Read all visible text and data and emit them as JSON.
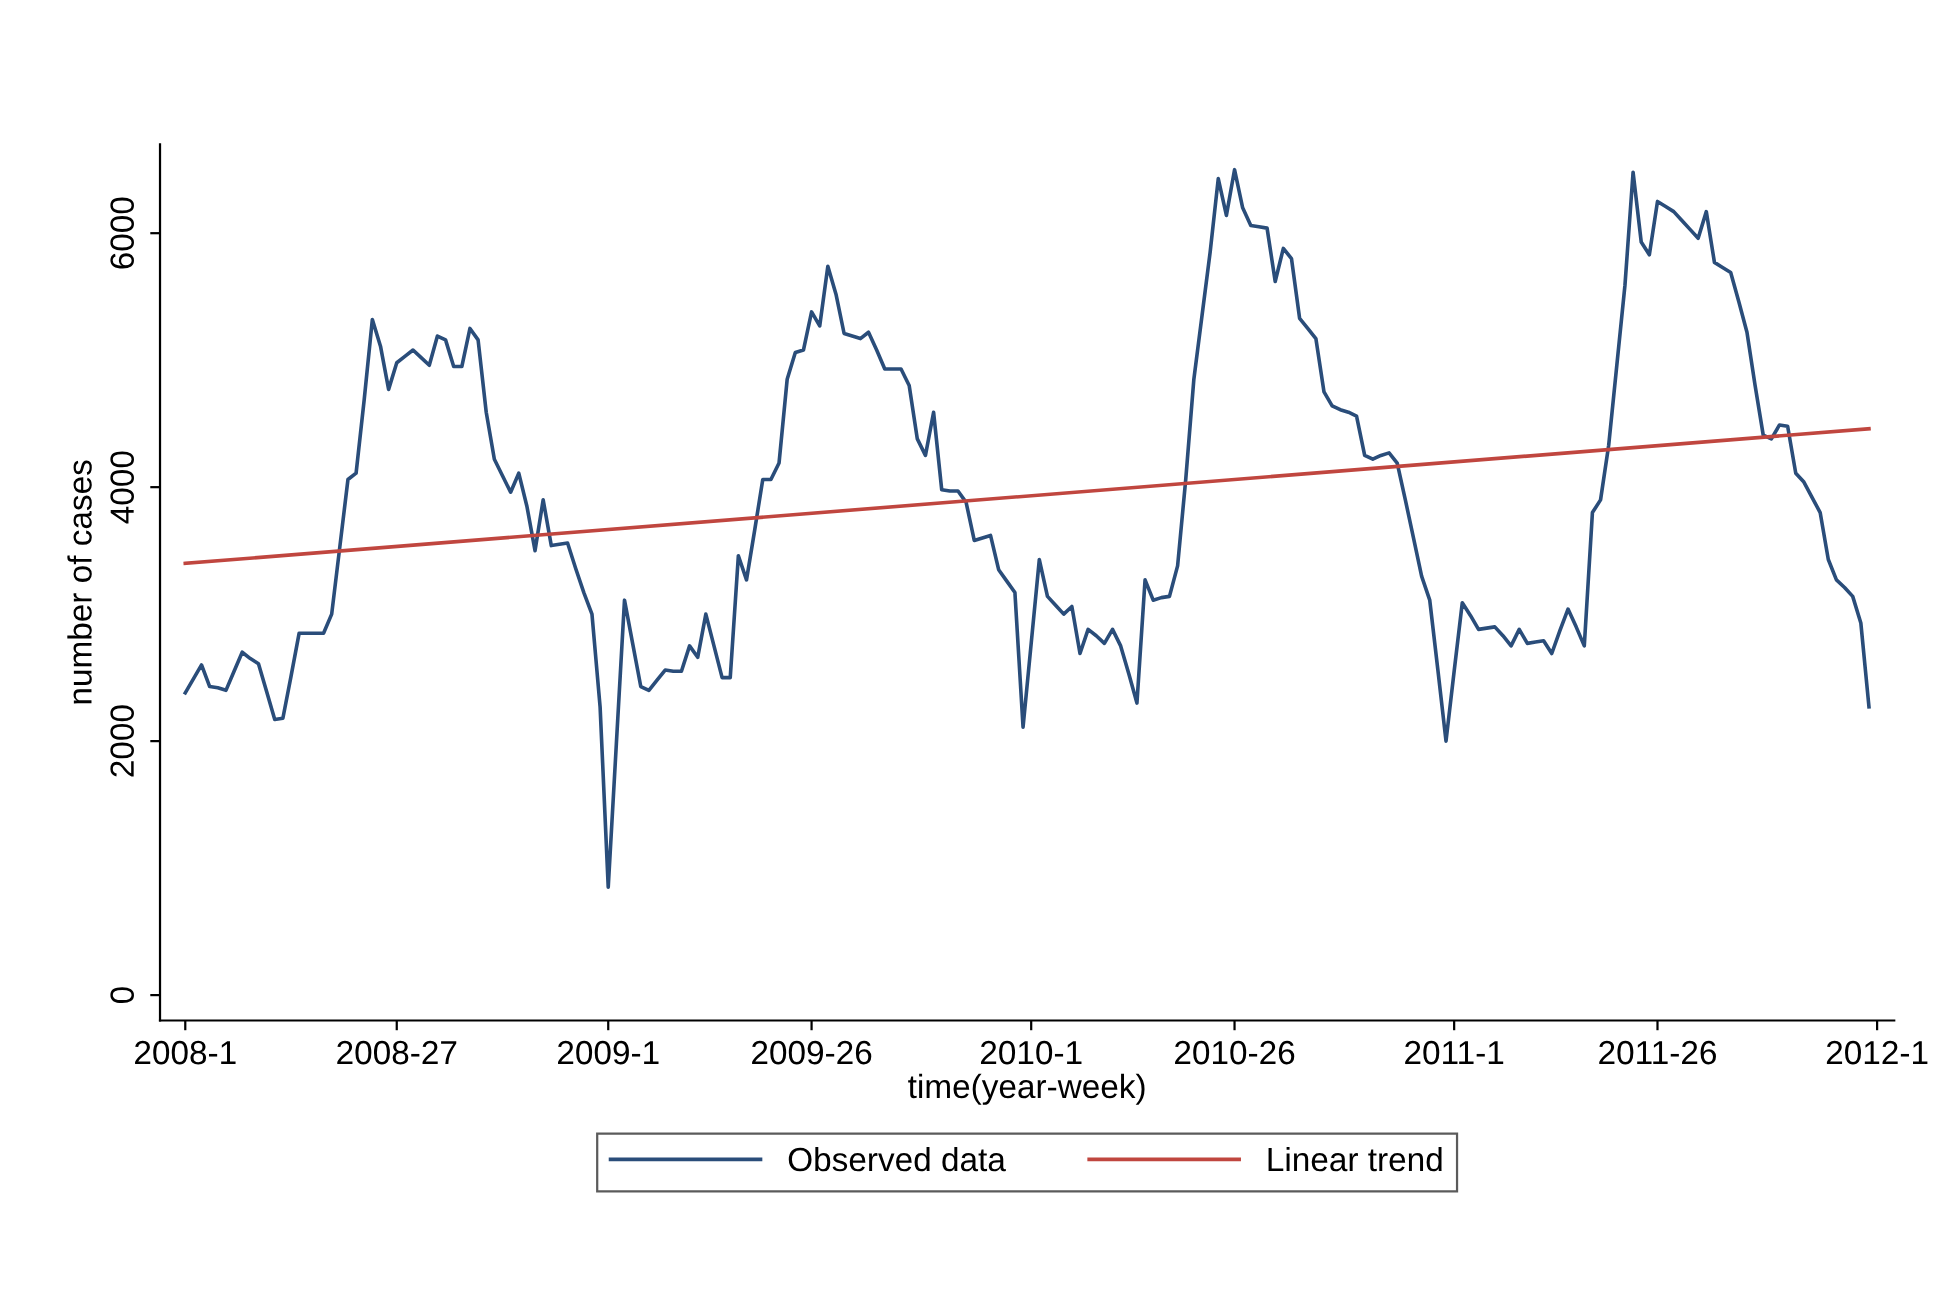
{
  "chart_data": {
    "type": "line",
    "xlabel": "time(year-week)",
    "ylabel": "number of cases",
    "categories": [
      "2008-1",
      null,
      null,
      null,
      null,
      null,
      null,
      null,
      null,
      null,
      null,
      null,
      null,
      null,
      null,
      null,
      null,
      null,
      null,
      null,
      null,
      null,
      null,
      null,
      null,
      null,
      "2008-27",
      null,
      null,
      null,
      null,
      null,
      null,
      null,
      null,
      null,
      null,
      null,
      null,
      null,
      null,
      null,
      null,
      null,
      null,
      null,
      null,
      null,
      null,
      null,
      null,
      null,
      "2009-1",
      null,
      null,
      null,
      null,
      null,
      null,
      null,
      null,
      null,
      null,
      null,
      null,
      null,
      null,
      null,
      null,
      null,
      null,
      null,
      null,
      null,
      null,
      null,
      null,
      "2009-26",
      null,
      null,
      null,
      null,
      null,
      null,
      null,
      null,
      null,
      null,
      null,
      null,
      null,
      null,
      null,
      null,
      null,
      null,
      null,
      null,
      null,
      null,
      null,
      null,
      null,
      null,
      "2010-1",
      null,
      null,
      null,
      null,
      null,
      null,
      null,
      null,
      null,
      null,
      null,
      null,
      null,
      null,
      null,
      null,
      null,
      null,
      null,
      null,
      null,
      null,
      null,
      null,
      "2010-26",
      null,
      null,
      null,
      null,
      null,
      null,
      null,
      null,
      null,
      null,
      null,
      null,
      null,
      null,
      null,
      null,
      null,
      null,
      null,
      null,
      null,
      null,
      null,
      null,
      null,
      null,
      "2011-1",
      null,
      null,
      null,
      null,
      null,
      null,
      null,
      null,
      null,
      null,
      null,
      null,
      null,
      null,
      null,
      null,
      null,
      null,
      null,
      null,
      null,
      null,
      null,
      null,
      "2011-26",
      null,
      null,
      null,
      null,
      null,
      null,
      null,
      null,
      null,
      null,
      null,
      null,
      null,
      null,
      null,
      null,
      null,
      null,
      null,
      null,
      null,
      null,
      null,
      null,
      null,
      null,
      "2012-1"
    ],
    "ylim": [
      -200,
      6700
    ],
    "yticks": [
      0,
      2000,
      4000,
      6000
    ],
    "grid": false,
    "legend": "bottom",
    "line_style": "solid",
    "series": [
      {
        "name": "Observed data",
        "color": "#2a4d7a",
        "values": [
          2380,
          2490,
          2600,
          2430,
          2420,
          2400,
          2550,
          2700,
          2650,
          2610,
          2390,
          2170,
          2180,
          2510,
          2850,
          2850,
          2850,
          2850,
          3000,
          3530,
          4060,
          4110,
          4690,
          5320,
          5110,
          4770,
          4980,
          5030,
          5080,
          5020,
          4960,
          5190,
          5160,
          4950,
          4950,
          5250,
          5160,
          4590,
          4220,
          4090,
          3960,
          4110,
          3850,
          3500,
          3900,
          3540,
          3550,
          3560,
          3360,
          3170,
          3000,
          2270,
          850,
          1980,
          3110,
          2770,
          2430,
          2400,
          2480,
          2560,
          2550,
          2550,
          2750,
          2660,
          3000,
          2750,
          2500,
          2500,
          3460,
          3270,
          3660,
          4060,
          4060,
          4190,
          4850,
          5060,
          5080,
          5380,
          5270,
          5740,
          5520,
          5210,
          5190,
          5170,
          5220,
          5080,
          4930,
          4930,
          4930,
          4800,
          4380,
          4250,
          4590,
          3980,
          3970,
          3970,
          3880,
          3580,
          3600,
          3620,
          3350,
          3260,
          3170,
          2110,
          2770,
          3430,
          3140,
          3070,
          3000,
          3060,
          2690,
          2880,
          2830,
          2770,
          2880,
          2750,
          2530,
          2300,
          3270,
          3110,
          3130,
          3140,
          3380,
          4060,
          4850,
          5350,
          5850,
          6430,
          6140,
          6500,
          6200,
          6060,
          6050,
          6040,
          5620,
          5880,
          5800,
          5330,
          5250,
          5170,
          4750,
          4640,
          4610,
          4590,
          4560,
          4250,
          4220,
          4250,
          4270,
          4190,
          3900,
          3600,
          3300,
          3110,
          2560,
          2000,
          2550,
          3090,
          2990,
          2880,
          2890,
          2900,
          2830,
          2750,
          2880,
          2770,
          2780,
          2790,
          2690,
          2870,
          3040,
          2900,
          2750,
          3800,
          3900,
          4330,
          4960,
          5590,
          6480,
          5930,
          5830,
          6250,
          6210,
          6170,
          6100,
          6030,
          5960,
          6170,
          5770,
          5730,
          5690,
          5460,
          5220,
          4800,
          4410,
          4380,
          4490,
          4480,
          4110,
          4040,
          3920,
          3800,
          3430,
          3270,
          3210,
          3140,
          2930,
          2270,
          null
        ]
      },
      {
        "name": "Linear trend",
        "color": "#c0463f",
        "values": [
          3400,
          null,
          null,
          null,
          null,
          null,
          null,
          null,
          null,
          null,
          null,
          null,
          null,
          null,
          null,
          null,
          null,
          null,
          null,
          null,
          null,
          null,
          null,
          null,
          null,
          null,
          null,
          null,
          null,
          null,
          null,
          null,
          null,
          null,
          null,
          null,
          null,
          null,
          null,
          null,
          null,
          null,
          null,
          null,
          null,
          null,
          null,
          null,
          null,
          null,
          null,
          null,
          null,
          null,
          null,
          null,
          null,
          null,
          null,
          null,
          null,
          null,
          null,
          null,
          null,
          null,
          null,
          null,
          null,
          null,
          null,
          null,
          null,
          null,
          null,
          null,
          null,
          null,
          null,
          null,
          null,
          null,
          null,
          null,
          null,
          null,
          null,
          null,
          null,
          null,
          null,
          null,
          null,
          null,
          null,
          null,
          null,
          null,
          null,
          null,
          null,
          null,
          null,
          null,
          null,
          null,
          null,
          null,
          null,
          null,
          null,
          null,
          null,
          null,
          null,
          null,
          null,
          null,
          null,
          null,
          null,
          null,
          null,
          null,
          null,
          null,
          null,
          null,
          null,
          null,
          null,
          null,
          null,
          null,
          null,
          null,
          null,
          null,
          null,
          null,
          null,
          null,
          null,
          null,
          null,
          null,
          null,
          null,
          null,
          null,
          null,
          null,
          null,
          null,
          null,
          null,
          null,
          null,
          null,
          null,
          null,
          null,
          null,
          null,
          null,
          null,
          null,
          null,
          null,
          null,
          null,
          null,
          null,
          null,
          null,
          null,
          null,
          null,
          null,
          null,
          null,
          null,
          null,
          null,
          null,
          null,
          null,
          null,
          null,
          null,
          null,
          null,
          null,
          null,
          null,
          null,
          null,
          null,
          null,
          null,
          null,
          null,
          null,
          null,
          null,
          null,
          null,
          4460,
          null
        ]
      }
    ]
  }
}
